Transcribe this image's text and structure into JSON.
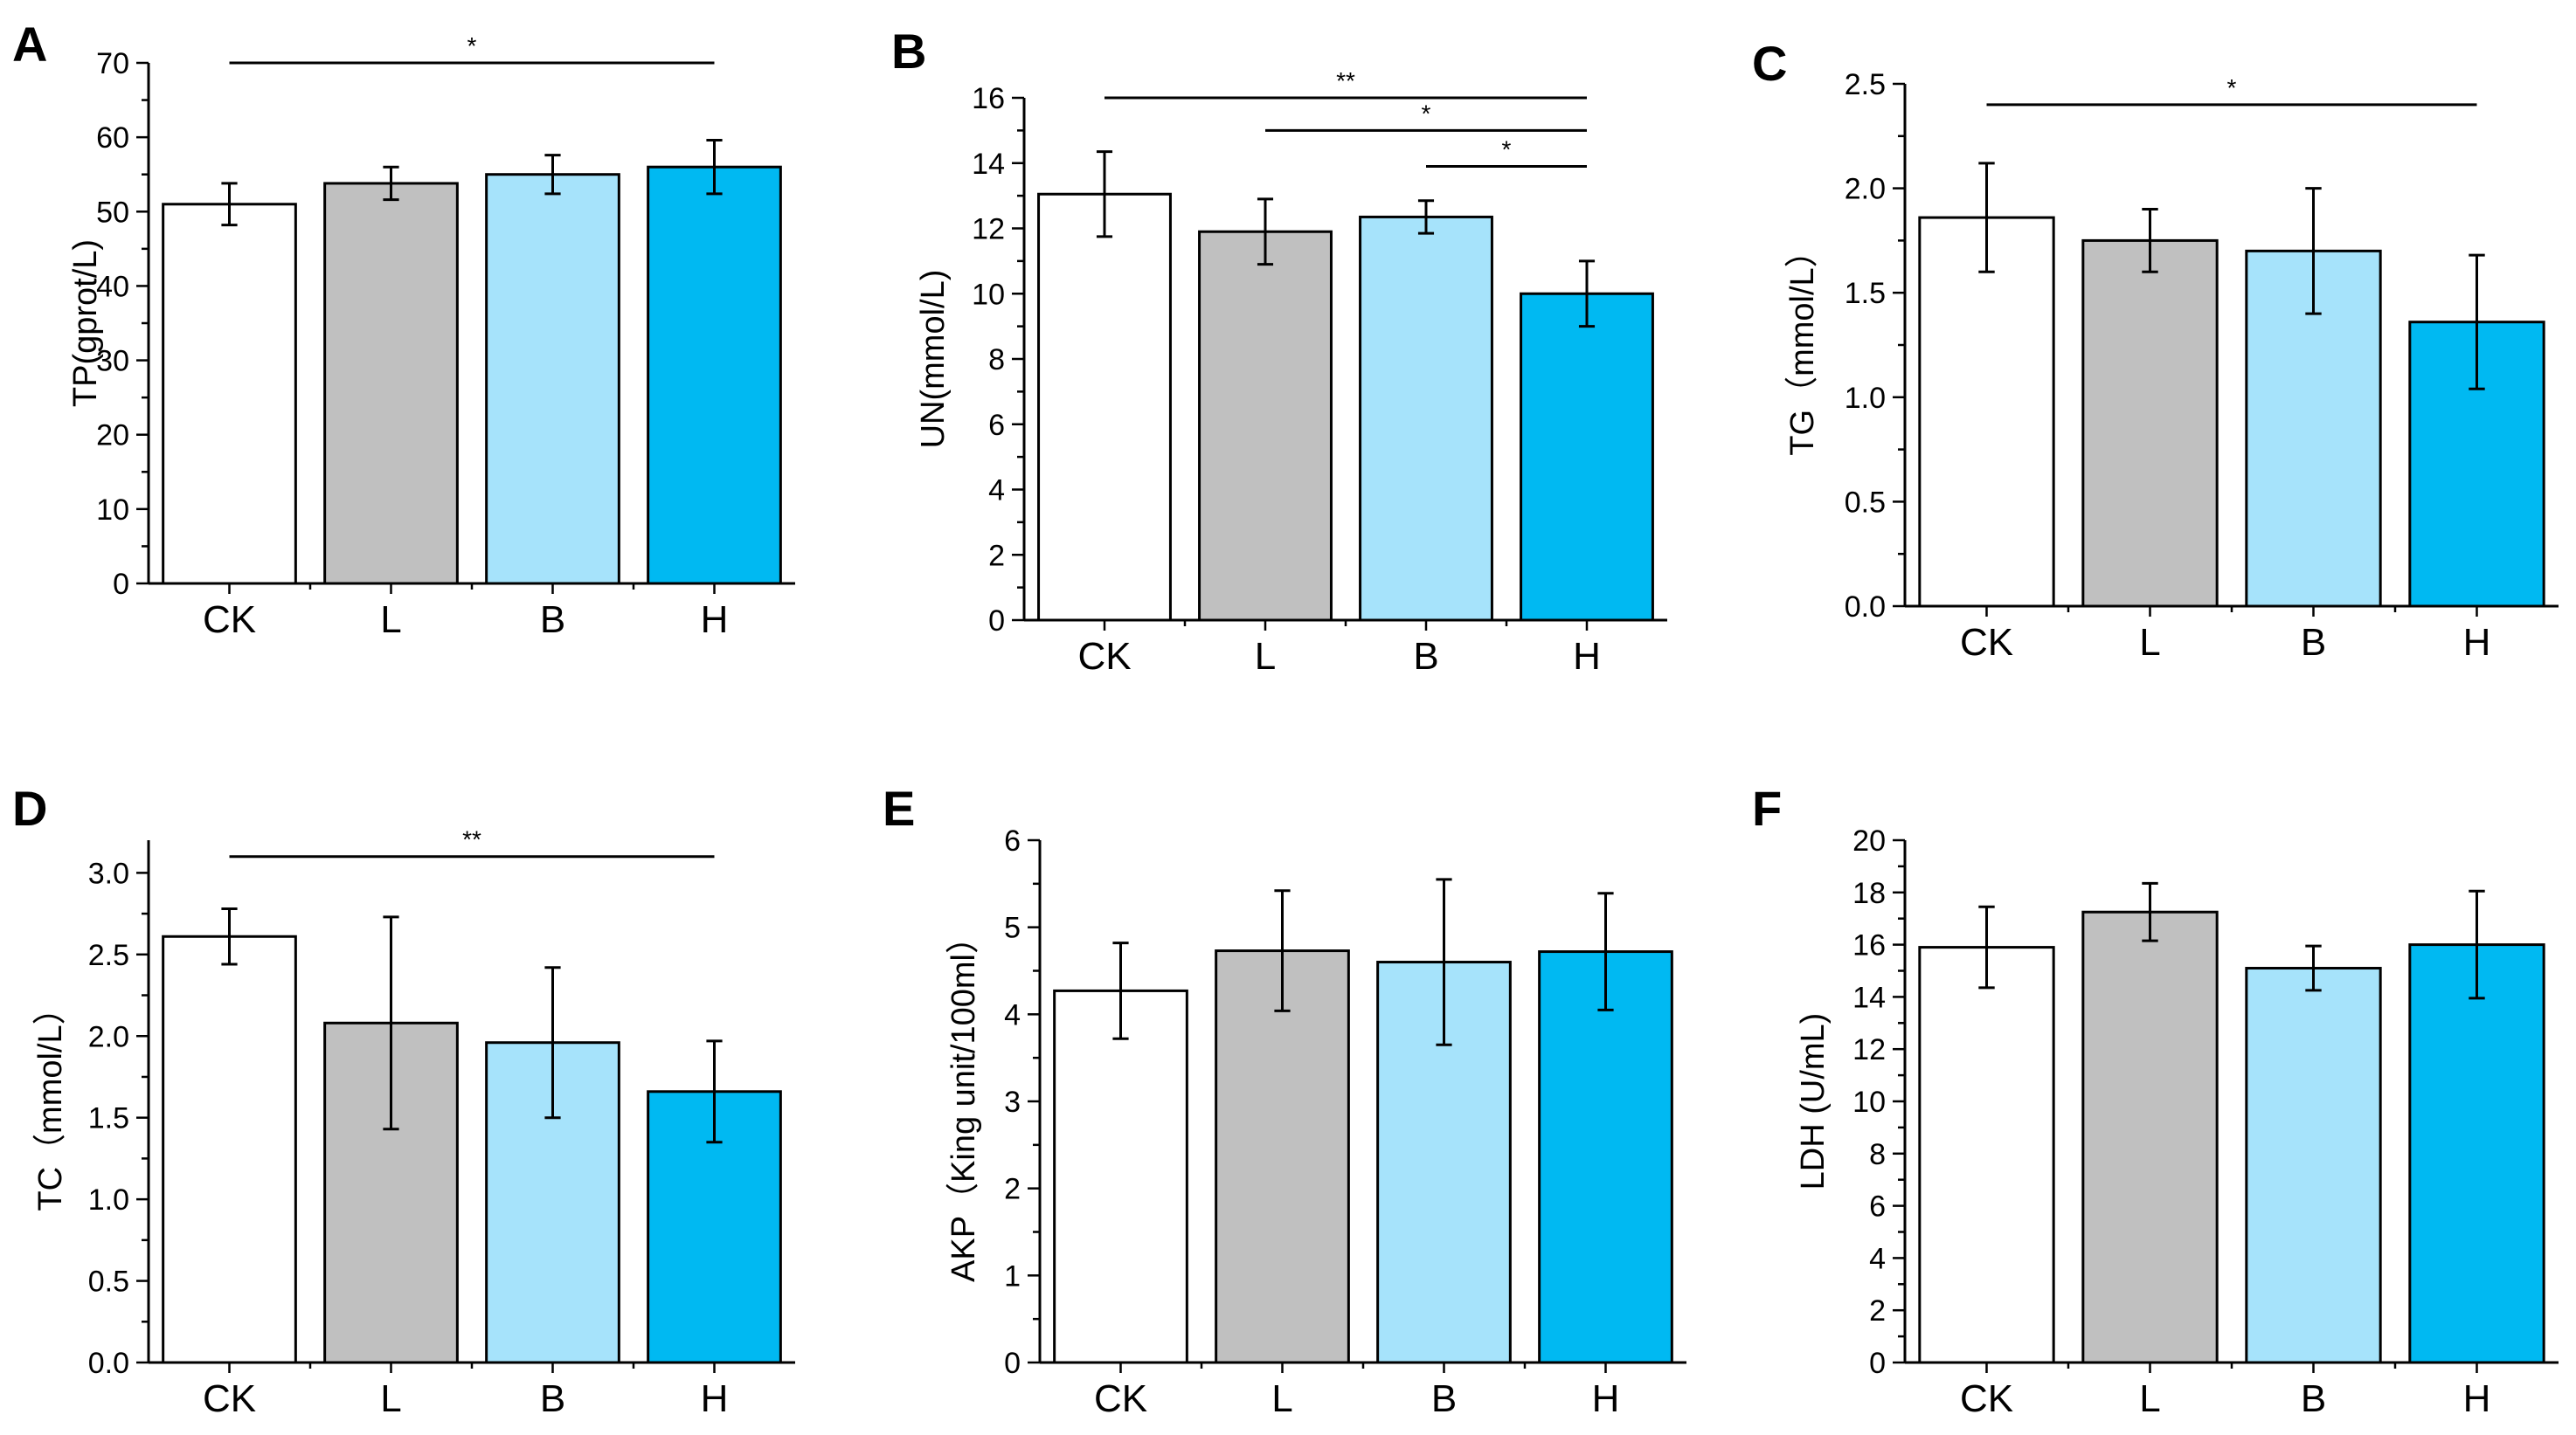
{
  "chart_data": [
    {
      "type": "bar",
      "panel": "A",
      "categories": [
        "CK",
        "L",
        "B",
        "H"
      ],
      "values": [
        51,
        53.8,
        55,
        56
      ],
      "errors": [
        2.8,
        2.2,
        2.6,
        3.6
      ],
      "colors": [
        "#ffffff",
        "#c0c0c0",
        "#a6e3fb",
        "#00b9f2"
      ],
      "ylabel": "TP(gprot/L)",
      "ylim": [
        0,
        70
      ],
      "ytick_labels": [
        "0",
        "10",
        "20",
        "30",
        "40",
        "50",
        "60",
        "70"
      ],
      "significance": [
        {
          "from": "CK",
          "to": "H",
          "value": 70,
          "label": "*"
        }
      ]
    },
    {
      "type": "bar",
      "panel": "B",
      "categories": [
        "CK",
        "L",
        "B",
        "H"
      ],
      "values": [
        13.05,
        11.9,
        12.35,
        10
      ],
      "errors": [
        1.3,
        1.0,
        0.5,
        1.0
      ],
      "colors": [
        "#ffffff",
        "#c0c0c0",
        "#a6e3fb",
        "#00b9f2"
      ],
      "ylabel": "UN(mmol/L)",
      "ylim": [
        0,
        16
      ],
      "ytick_labels": [
        "0",
        "2",
        "4",
        "6",
        "8",
        "10",
        "12",
        "14",
        "16"
      ],
      "significance": [
        {
          "from": "CK",
          "to": "H",
          "value": 16,
          "label": "**"
        },
        {
          "from": "L",
          "to": "H",
          "value": 15,
          "label": "*"
        },
        {
          "from": "B",
          "to": "H",
          "value": 13.9,
          "label": "*"
        }
      ]
    },
    {
      "type": "bar",
      "panel": "C",
      "categories": [
        "CK",
        "L",
        "B",
        "H"
      ],
      "values": [
        1.86,
        1.75,
        1.7,
        1.36
      ],
      "errors": [
        0.26,
        0.15,
        0.3,
        0.32
      ],
      "colors": [
        "#ffffff",
        "#c0c0c0",
        "#a6e3fb",
        "#00b9f2"
      ],
      "ylabel": "TG（mmol/L）",
      "ylim": [
        0,
        2.5
      ],
      "ytick_labels": [
        "0.0",
        "0.5",
        "1.0",
        "1.5",
        "2.0",
        "2.5"
      ],
      "significance": [
        {
          "from": "CK",
          "to": "H",
          "value": 2.4,
          "label": "*"
        }
      ]
    },
    {
      "type": "bar",
      "panel": "D",
      "categories": [
        "CK",
        "L",
        "B",
        "H"
      ],
      "values": [
        2.61,
        2.08,
        1.96,
        1.66
      ],
      "errors": [
        0.17,
        0.65,
        0.46,
        0.31
      ],
      "colors": [
        "#ffffff",
        "#c0c0c0",
        "#a6e3fb",
        "#00b9f2"
      ],
      "ylabel": "TC（mmol/L）",
      "ylim": [
        0,
        3.2
      ],
      "ytick_labels": [
        "0.0",
        "0.5",
        "1.0",
        "1.5",
        "2.0",
        "2.5",
        "3.0"
      ],
      "significance": [
        {
          "from": "CK",
          "to": "H",
          "value": 3.1,
          "label": "**"
        }
      ]
    },
    {
      "type": "bar",
      "panel": "E",
      "categories": [
        "CK",
        "L",
        "B",
        "H"
      ],
      "values": [
        4.27,
        4.73,
        4.6,
        4.72
      ],
      "errors": [
        0.55,
        0.69,
        0.95,
        0.67
      ],
      "colors": [
        "#ffffff",
        "#c0c0c0",
        "#a6e3fb",
        "#00b9f2"
      ],
      "ylabel": "AKP（King unit/100ml）",
      "ylim": [
        0,
        6
      ],
      "ytick_labels": [
        "0",
        "1",
        "2",
        "3",
        "4",
        "5",
        "6"
      ],
      "significance": []
    },
    {
      "type": "bar",
      "panel": "F",
      "categories": [
        "CK",
        "L",
        "B",
        "H"
      ],
      "values": [
        15.9,
        17.25,
        15.1,
        16
      ],
      "errors": [
        1.55,
        1.1,
        0.85,
        2.05
      ],
      "colors": [
        "#ffffff",
        "#c0c0c0",
        "#a6e3fb",
        "#00b9f2"
      ],
      "ylabel": "LDH (U/mL)",
      "ylim": [
        0,
        20
      ],
      "ytick_labels": [
        "0",
        "2",
        "4",
        "6",
        "8",
        "10",
        "12",
        "14",
        "16",
        "18",
        "20"
      ],
      "significance": []
    }
  ]
}
